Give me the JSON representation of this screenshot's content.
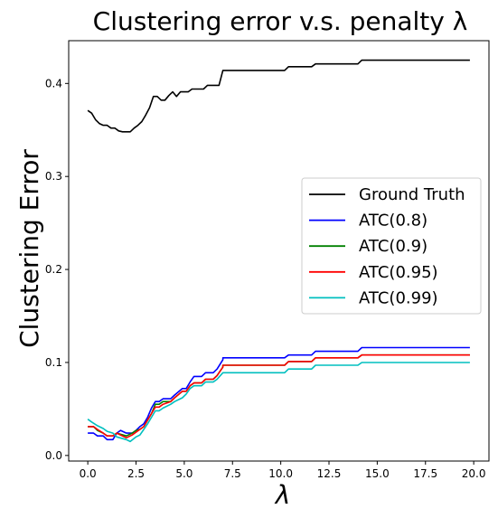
{
  "chart_data": {
    "type": "line",
    "title": "Clustering error v.s. penalty λ",
    "xlabel": "λ",
    "ylabel": "Clustering Error",
    "xlim": [
      -0.99,
      20.79
    ],
    "ylim": [
      -0.006,
      0.446
    ],
    "x_ticks": [
      "0.0",
      "2.5",
      "5.0",
      "7.5",
      "10.0",
      "12.5",
      "15.0",
      "17.5",
      "20.0"
    ],
    "y_ticks": [
      "0.0",
      "0.1",
      "0.2",
      "0.3",
      "0.4"
    ],
    "legend_position": "center-right",
    "grid": false,
    "series": [
      {
        "name": "Ground Truth",
        "color": "#000000",
        "points": [
          [
            0,
            0.371
          ],
          [
            0.2,
            0.368
          ],
          [
            0.4,
            0.361
          ],
          [
            0.6,
            0.357
          ],
          [
            0.8,
            0.355
          ],
          [
            1.0,
            0.355
          ],
          [
            1.2,
            0.352
          ],
          [
            1.4,
            0.352
          ],
          [
            1.6,
            0.349
          ],
          [
            1.8,
            0.348
          ],
          [
            2.0,
            0.348
          ],
          [
            2.2,
            0.348
          ],
          [
            2.4,
            0.352
          ],
          [
            2.6,
            0.355
          ],
          [
            2.8,
            0.359
          ],
          [
            3.0,
            0.366
          ],
          [
            3.2,
            0.374
          ],
          [
            3.4,
            0.386
          ],
          [
            3.6,
            0.386
          ],
          [
            3.8,
            0.382
          ],
          [
            4.0,
            0.382
          ],
          [
            4.2,
            0.387
          ],
          [
            4.4,
            0.391
          ],
          [
            4.6,
            0.386
          ],
          [
            4.8,
            0.391
          ],
          [
            5.2,
            0.391
          ],
          [
            5.4,
            0.394
          ],
          [
            6.0,
            0.394
          ],
          [
            6.2,
            0.398
          ],
          [
            6.8,
            0.398
          ],
          [
            7.0,
            0.414
          ],
          [
            10.2,
            0.414
          ],
          [
            10.4,
            0.418
          ],
          [
            11.6,
            0.418
          ],
          [
            11.8,
            0.421
          ],
          [
            14.0,
            0.421
          ],
          [
            14.2,
            0.425
          ],
          [
            19.8,
            0.425
          ]
        ]
      },
      {
        "name": "ATC(0.8)",
        "color": "#0000ff",
        "points": [
          [
            0,
            0.024
          ],
          [
            0.3,
            0.024
          ],
          [
            0.5,
            0.021
          ],
          [
            0.8,
            0.021
          ],
          [
            1.0,
            0.017
          ],
          [
            1.3,
            0.017
          ],
          [
            1.5,
            0.024
          ],
          [
            1.7,
            0.027
          ],
          [
            2.0,
            0.024
          ],
          [
            2.3,
            0.024
          ],
          [
            2.5,
            0.027
          ],
          [
            2.7,
            0.031
          ],
          [
            2.9,
            0.034
          ],
          [
            3.1,
            0.041
          ],
          [
            3.3,
            0.051
          ],
          [
            3.5,
            0.058
          ],
          [
            3.7,
            0.058
          ],
          [
            3.9,
            0.061
          ],
          [
            4.3,
            0.061
          ],
          [
            4.5,
            0.065
          ],
          [
            4.9,
            0.072
          ],
          [
            5.1,
            0.072
          ],
          [
            5.3,
            0.079
          ],
          [
            5.5,
            0.085
          ],
          [
            5.9,
            0.085
          ],
          [
            6.1,
            0.089
          ],
          [
            6.5,
            0.089
          ],
          [
            6.7,
            0.093
          ],
          [
            7.0,
            0.103
          ],
          [
            7.0,
            0.105
          ],
          [
            10.2,
            0.105
          ],
          [
            10.4,
            0.108
          ],
          [
            11.6,
            0.108
          ],
          [
            11.8,
            0.112
          ],
          [
            14.0,
            0.112
          ],
          [
            14.2,
            0.116
          ],
          [
            19.8,
            0.116
          ]
        ]
      },
      {
        "name": "ATC(0.9)",
        "color": "#008000",
        "points": [
          [
            0,
            0.031
          ],
          [
            0.3,
            0.031
          ],
          [
            0.5,
            0.027
          ],
          [
            0.8,
            0.024
          ],
          [
            1.0,
            0.021
          ],
          [
            1.3,
            0.021
          ],
          [
            1.5,
            0.024
          ],
          [
            2.0,
            0.021
          ],
          [
            2.3,
            0.024
          ],
          [
            2.5,
            0.027
          ],
          [
            2.7,
            0.028
          ],
          [
            2.9,
            0.031
          ],
          [
            3.1,
            0.038
          ],
          [
            3.3,
            0.045
          ],
          [
            3.5,
            0.055
          ],
          [
            3.7,
            0.055
          ],
          [
            3.9,
            0.058
          ],
          [
            4.3,
            0.058
          ],
          [
            4.5,
            0.062
          ],
          [
            4.9,
            0.069
          ],
          [
            5.1,
            0.069
          ],
          [
            5.3,
            0.075
          ],
          [
            5.5,
            0.078
          ],
          [
            5.9,
            0.078
          ],
          [
            6.1,
            0.082
          ],
          [
            6.5,
            0.082
          ],
          [
            6.7,
            0.086
          ],
          [
            7.0,
            0.095
          ],
          [
            7.0,
            0.097
          ],
          [
            10.2,
            0.097
          ],
          [
            10.4,
            0.101
          ],
          [
            11.6,
            0.101
          ],
          [
            11.8,
            0.105
          ],
          [
            14.0,
            0.105
          ],
          [
            14.2,
            0.108
          ],
          [
            19.8,
            0.108
          ]
        ]
      },
      {
        "name": "ATC(0.95)",
        "color": "#ff0000",
        "points": [
          [
            0,
            0.031
          ],
          [
            0.3,
            0.031
          ],
          [
            0.5,
            0.028
          ],
          [
            0.8,
            0.024
          ],
          [
            1.0,
            0.021
          ],
          [
            1.3,
            0.021
          ],
          [
            1.5,
            0.024
          ],
          [
            2.0,
            0.019
          ],
          [
            2.3,
            0.022
          ],
          [
            2.5,
            0.025
          ],
          [
            2.7,
            0.028
          ],
          [
            2.9,
            0.031
          ],
          [
            3.1,
            0.038
          ],
          [
            3.3,
            0.045
          ],
          [
            3.5,
            0.052
          ],
          [
            3.7,
            0.052
          ],
          [
            3.9,
            0.055
          ],
          [
            4.3,
            0.058
          ],
          [
            4.5,
            0.062
          ],
          [
            4.9,
            0.069
          ],
          [
            5.1,
            0.069
          ],
          [
            5.3,
            0.075
          ],
          [
            5.5,
            0.078
          ],
          [
            5.9,
            0.078
          ],
          [
            6.1,
            0.082
          ],
          [
            6.5,
            0.082
          ],
          [
            6.7,
            0.086
          ],
          [
            7.0,
            0.095
          ],
          [
            7.0,
            0.097
          ],
          [
            10.2,
            0.097
          ],
          [
            10.4,
            0.101
          ],
          [
            11.6,
            0.101
          ],
          [
            11.8,
            0.105
          ],
          [
            14.0,
            0.105
          ],
          [
            14.2,
            0.108
          ],
          [
            19.8,
            0.108
          ]
        ]
      },
      {
        "name": "ATC(0.99)",
        "color": "#00bfbf",
        "points": [
          [
            0,
            0.039
          ],
          [
            0.2,
            0.036
          ],
          [
            0.5,
            0.032
          ],
          [
            0.8,
            0.029
          ],
          [
            1.0,
            0.026
          ],
          [
            1.3,
            0.024
          ],
          [
            1.5,
            0.02
          ],
          [
            2.0,
            0.017
          ],
          [
            2.2,
            0.015
          ],
          [
            2.5,
            0.02
          ],
          [
            2.7,
            0.022
          ],
          [
            2.9,
            0.028
          ],
          [
            3.1,
            0.034
          ],
          [
            3.3,
            0.041
          ],
          [
            3.5,
            0.048
          ],
          [
            3.7,
            0.048
          ],
          [
            3.9,
            0.051
          ],
          [
            4.3,
            0.055
          ],
          [
            4.5,
            0.058
          ],
          [
            4.9,
            0.062
          ],
          [
            5.1,
            0.066
          ],
          [
            5.3,
            0.072
          ],
          [
            5.5,
            0.075
          ],
          [
            5.9,
            0.075
          ],
          [
            6.1,
            0.079
          ],
          [
            6.5,
            0.079
          ],
          [
            6.7,
            0.082
          ],
          [
            7.0,
            0.089
          ],
          [
            10.2,
            0.089
          ],
          [
            10.4,
            0.093
          ],
          [
            11.6,
            0.093
          ],
          [
            11.8,
            0.097
          ],
          [
            14.0,
            0.097
          ],
          [
            14.2,
            0.1
          ],
          [
            19.8,
            0.1
          ]
        ]
      }
    ]
  }
}
